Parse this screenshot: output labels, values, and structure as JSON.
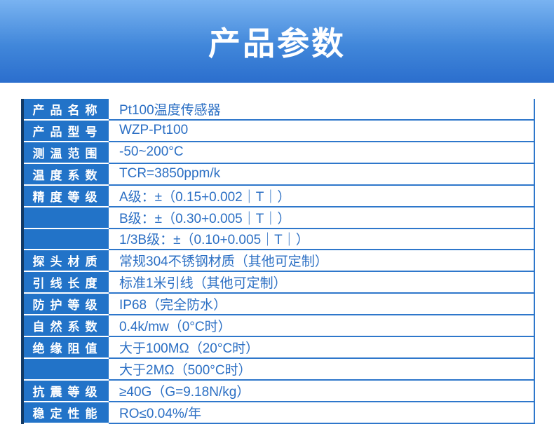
{
  "banner": {
    "title": "产品参数"
  },
  "colors": {
    "banner_gradient_top": "#79b3f1",
    "banner_gradient_bottom": "#2b6ecd",
    "label_cell_blue": "#2273c8",
    "left_accent_navy": "#123a66",
    "grid_line_blue": "#2e77cb",
    "value_text_blue": "#2b6fc4"
  },
  "table": {
    "rows": [
      {
        "label": "产品名称",
        "value": "Pt100温度传感器"
      },
      {
        "label": "产品型号",
        "value": "WZP-Pt100"
      },
      {
        "label": "测温范围",
        "value": "-50~200°C"
      },
      {
        "label": "温度系数",
        "value": "TCR=3850ppm/k"
      },
      {
        "label": "精度等级",
        "value": "A级：±（0.15+0.002｜T｜）"
      },
      {
        "label": "",
        "value": "B级：±（0.30+0.005｜T｜）"
      },
      {
        "label": "",
        "value": "1/3B级：±（0.10+0.005｜T｜）"
      },
      {
        "label": "探头材质",
        "value": "常规304不锈钢材质（其他可定制）"
      },
      {
        "label": "引线长度",
        "value": "标准1米引线（其他可定制）"
      },
      {
        "label": "防护等级",
        "value": "IP68（完全防水）"
      },
      {
        "label": "自然系数",
        "value": "0.4k/mw（0°C时）"
      },
      {
        "label": "绝缘阻值",
        "value": "大于100MΩ（20°C时）"
      },
      {
        "label": "",
        "value": "大于2MΩ（500°C时）"
      },
      {
        "label": "抗震等级",
        "value": "≥40G（G=9.18N/kg）"
      },
      {
        "label": "稳定性能",
        "value": "RO≤0.04%/年"
      }
    ]
  }
}
